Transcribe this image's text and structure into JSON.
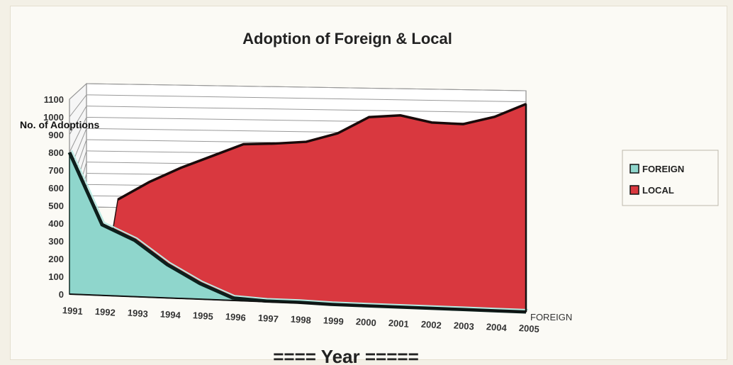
{
  "chart_data": {
    "type": "area",
    "title": "Adoption  of  Foreign & Local",
    "ylabel": "No. of Adoptions",
    "xlabel": "==== Year =====",
    "depth_label": "FOREIGN",
    "categories": [
      "1991",
      "1992",
      "1993",
      "1994",
      "1995",
      "1996",
      "1997",
      "1998",
      "1999",
      "2000",
      "2001",
      "2002",
      "2003",
      "2004",
      "2005"
    ],
    "series": [
      {
        "name": "FOREIGN",
        "color": "#8fd6cc",
        "values": [
          800,
          400,
          320,
          190,
          90,
          15,
          5,
          5,
          0,
          0,
          0,
          0,
          0,
          0,
          0
        ]
      },
      {
        "name": "LOCAL",
        "color": "#d9383f",
        "values": [
          0,
          70,
          230,
          360,
          470,
          580,
          590,
          610,
          690,
          840,
          860,
          800,
          790,
          860,
          980
        ]
      }
    ],
    "yticks": [
      0,
      100,
      200,
      300,
      400,
      500,
      600,
      700,
      800,
      900,
      1000,
      1100
    ],
    "ylim": [
      0,
      1100
    ],
    "grid": true,
    "legend_position": "right"
  }
}
